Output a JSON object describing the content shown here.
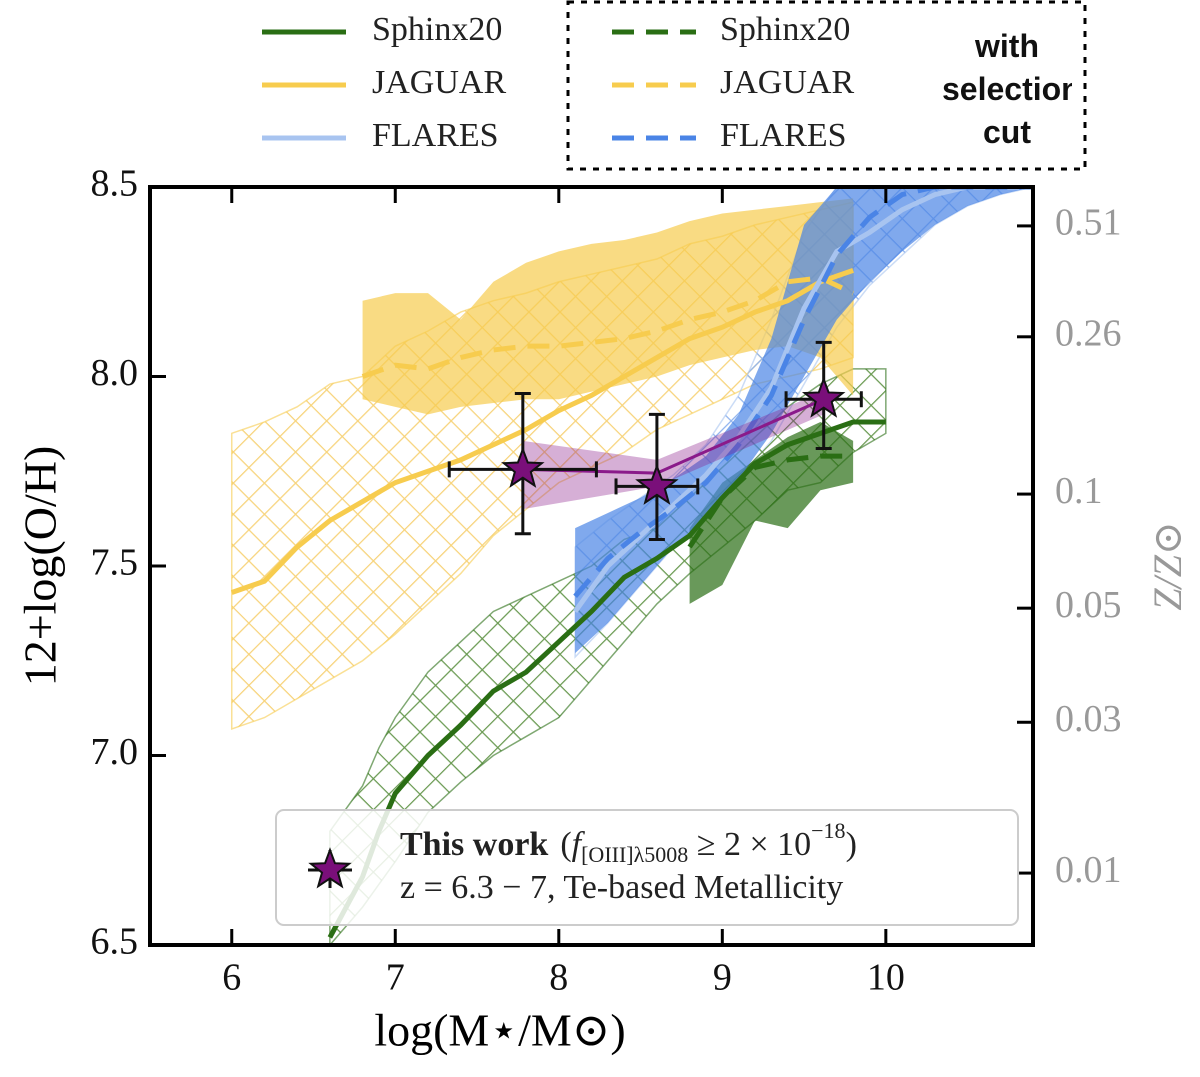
{
  "chart_data": {
    "type": "line",
    "x_label": "log(M⋆/M⊙)",
    "y_label": "12+log(O/H)",
    "y2_label": "Z/Z⊙",
    "xlim": [
      5.5,
      10.9
    ],
    "ylim": [
      6.5,
      8.5
    ],
    "xticks": [
      6,
      7,
      8,
      9,
      10
    ],
    "yticks": [
      6.5,
      {
        "value": 7,
        "label": "7.0"
      },
      7.5,
      {
        "value": 8,
        "label": "8.0"
      },
      8.5
    ],
    "y2_scale": "log",
    "y2lim": [
      0.00646,
      0.646
    ],
    "y2ticks": [
      0.51,
      0.26,
      0.1,
      0.05,
      {
        "value": 0.025,
        "label": "0.03"
      },
      0.01
    ],
    "legend_group_title": "with selection cut",
    "series": [
      {
        "name": "JAGUAR",
        "color": "#f7cc4e",
        "linestyle": "solid",
        "band": "hatch",
        "x": [
          6.0,
          6.2,
          6.4,
          6.6,
          6.8,
          7.0,
          7.2,
          7.4,
          7.6,
          7.8,
          8.0,
          8.2,
          8.4,
          8.6,
          8.8,
          9.0,
          9.2,
          9.4,
          9.6,
          9.8
        ],
        "values": [
          7.43,
          7.46,
          7.55,
          7.62,
          7.67,
          7.72,
          7.75,
          7.78,
          7.82,
          7.86,
          7.91,
          7.95,
          8.0,
          8.05,
          8.1,
          8.13,
          8.17,
          8.2,
          8.25,
          8.28
        ],
        "band_high": [
          7.85,
          7.88,
          7.92,
          7.98,
          8.0,
          8.08,
          8.12,
          8.17,
          8.2,
          8.22,
          8.25,
          8.27,
          8.29,
          8.31,
          8.35,
          8.37,
          8.4,
          8.42,
          8.44,
          8.46
        ],
        "band_low": [
          7.07,
          7.1,
          7.15,
          7.2,
          7.25,
          7.32,
          7.4,
          7.48,
          7.58,
          7.65,
          7.72,
          7.76,
          7.8,
          7.86,
          7.9,
          7.94,
          7.98,
          8.0,
          8.02,
          8.05
        ]
      },
      {
        "name": "FLARES",
        "color": "#a8c4f0",
        "linestyle": "solid",
        "band": "hatch",
        "x": [
          8.1,
          8.3,
          8.5,
          8.7,
          8.9,
          9.1,
          9.3,
          9.5,
          9.7,
          9.9,
          10.1,
          10.3,
          10.5,
          10.7,
          10.9
        ],
        "values": [
          7.38,
          7.5,
          7.58,
          7.66,
          7.74,
          7.84,
          7.97,
          8.18,
          8.33,
          8.38,
          8.44,
          8.48,
          8.5,
          8.5,
          8.5
        ],
        "band_high": [
          7.55,
          7.62,
          7.68,
          7.74,
          7.82,
          7.95,
          8.15,
          8.38,
          8.5,
          8.5,
          8.5,
          8.5,
          8.5,
          8.5,
          8.5
        ],
        "band_low": [
          7.26,
          7.35,
          7.45,
          7.55,
          7.63,
          7.73,
          7.83,
          7.98,
          8.13,
          8.24,
          8.32,
          8.4,
          8.45,
          8.48,
          8.5
        ]
      },
      {
        "name": "Sphinx20",
        "color": "#2a6e14",
        "linestyle": "solid",
        "band": "hatch",
        "x": [
          6.6,
          6.8,
          6.9,
          7.0,
          7.2,
          7.4,
          7.6,
          7.8,
          8.0,
          8.2,
          8.4,
          8.6,
          8.8,
          9.0,
          9.2,
          9.4,
          9.6,
          9.8,
          10.0
        ],
        "values": [
          6.52,
          6.68,
          6.8,
          6.9,
          7.0,
          7.08,
          7.17,
          7.22,
          7.3,
          7.38,
          7.47,
          7.52,
          7.58,
          7.68,
          7.77,
          7.82,
          7.85,
          7.88,
          7.88
        ],
        "band_high": [
          6.8,
          6.92,
          7.02,
          7.1,
          7.22,
          7.3,
          7.38,
          7.42,
          7.46,
          7.5,
          7.57,
          7.6,
          7.68,
          7.76,
          7.84,
          7.92,
          7.98,
          8.02,
          8.02
        ],
        "band_low": [
          6.5,
          6.6,
          6.66,
          6.72,
          6.85,
          6.93,
          7.0,
          7.05,
          7.1,
          7.2,
          7.3,
          7.4,
          7.48,
          7.55,
          7.62,
          7.7,
          7.72,
          7.8,
          7.85
        ]
      },
      {
        "name": "Sphinx20",
        "color": "#2a6e14",
        "linestyle": "dashed",
        "band": "fill",
        "x": [
          8.8,
          9.0,
          9.2,
          9.4,
          9.6,
          9.8
        ],
        "values": [
          7.55,
          7.68,
          7.76,
          7.78,
          7.79,
          7.79
        ],
        "band_high": [
          7.6,
          7.72,
          7.78,
          7.84,
          7.88,
          7.83
        ],
        "band_low": [
          7.4,
          7.45,
          7.62,
          7.6,
          7.7,
          7.72
        ]
      },
      {
        "name": "JAGUAR",
        "color": "#f7cc4e",
        "linestyle": "dashed",
        "band": "fill",
        "x": [
          6.8,
          7.0,
          7.2,
          7.4,
          7.6,
          7.8,
          8.0,
          8.2,
          8.4,
          8.6,
          8.8,
          9.0,
          9.2,
          9.4,
          9.6,
          9.8
        ],
        "values": [
          8.0,
          8.03,
          8.02,
          8.05,
          8.07,
          8.08,
          8.08,
          8.09,
          8.1,
          8.12,
          8.15,
          8.17,
          8.2,
          8.25,
          8.26,
          8.22
        ],
        "band_high": [
          8.2,
          8.22,
          8.22,
          8.15,
          8.25,
          8.3,
          8.33,
          8.35,
          8.36,
          8.38,
          8.41,
          8.43,
          8.44,
          8.45,
          8.46,
          8.47
        ],
        "band_low": [
          7.94,
          7.92,
          7.9,
          7.92,
          7.93,
          7.94,
          7.94,
          7.96,
          7.98,
          8.0,
          8.03,
          8.05,
          8.07,
          8.08,
          8.05,
          7.95
        ]
      },
      {
        "name": "FLARES",
        "color": "#4a84e6",
        "linestyle": "dashed",
        "band": "fill",
        "x": [
          8.1,
          8.3,
          8.5,
          8.7,
          8.9,
          9.1,
          9.3,
          9.5,
          9.7,
          9.9,
          10.1,
          10.3,
          10.5,
          10.7,
          10.9
        ],
        "values": [
          7.42,
          7.52,
          7.59,
          7.65,
          7.72,
          7.82,
          7.95,
          8.15,
          8.32,
          8.42,
          8.48,
          8.5,
          8.5,
          8.5,
          8.5
        ],
        "band_high": [
          7.6,
          7.64,
          7.68,
          7.73,
          7.79,
          7.9,
          8.1,
          8.4,
          8.5,
          8.5,
          8.5,
          8.5,
          8.5,
          8.5,
          8.5
        ],
        "band_low": [
          7.27,
          7.35,
          7.45,
          7.55,
          7.63,
          7.73,
          7.85,
          8.0,
          8.15,
          8.25,
          8.33,
          8.4,
          8.45,
          8.48,
          8.5
        ]
      }
    ],
    "fit": {
      "color": "#8a1a8a",
      "x": [
        7.78,
        8.6,
        9.62
      ],
      "values": [
        7.755,
        7.745,
        7.94
      ],
      "band_high": [
        7.83,
        7.78,
        7.96
      ],
      "band_low": [
        7.65,
        7.71,
        7.9
      ]
    },
    "points": {
      "name_bold": "This work",
      "color": "#7a0f7a",
      "x": [
        7.78,
        8.6,
        9.62
      ],
      "values": [
        7.755,
        7.71,
        7.94
      ],
      "xerr": [
        0.45,
        0.25,
        0.23
      ],
      "yerr_low": [
        0.17,
        0.14,
        0.13
      ],
      "yerr_high": [
        0.2,
        0.19,
        0.15
      ]
    },
    "annotation": {
      "open": "(",
      "f": "f",
      "sub": "[OIII]λ5008",
      "rel": " ≥ 2 × 10",
      "sup": "−18",
      "close": ")",
      "line2": "z = 6.3 − 7, Te-based Metallicity"
    }
  }
}
